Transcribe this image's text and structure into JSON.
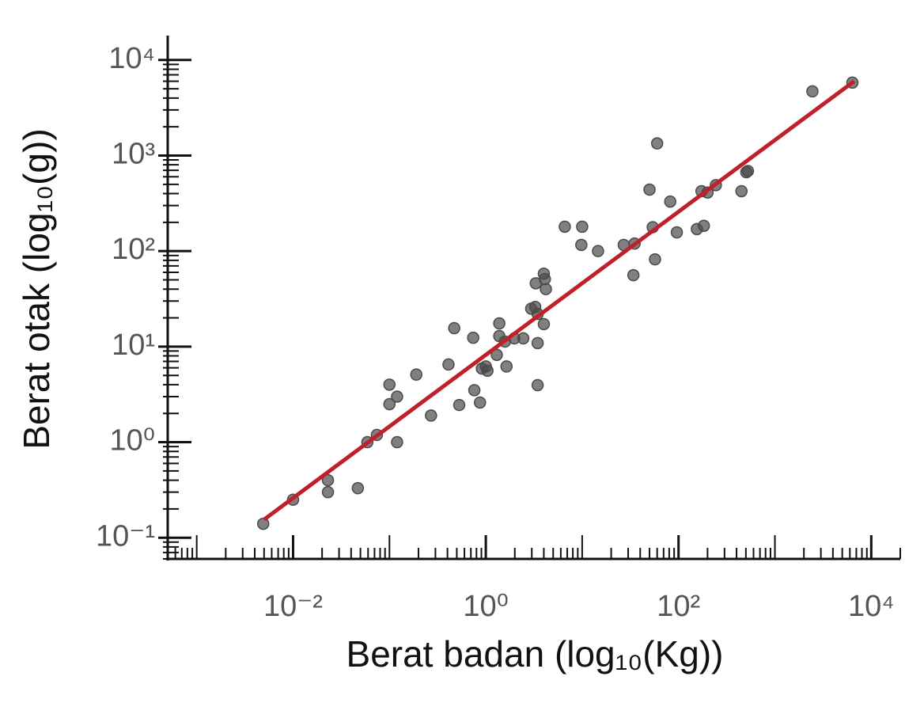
{
  "chart_data": {
    "type": "scatter",
    "x_label": "Berat badan (log₁₀(Kg))",
    "y_label": "Berat otak (log₁₀(g))",
    "xscale": "log",
    "yscale": "log",
    "xlim": [
      0.0005,
      20000
    ],
    "ylim": [
      0.06,
      18000
    ],
    "xticks": [
      {
        "value": 0.01,
        "label": "10⁻²"
      },
      {
        "value": 1,
        "label": "10⁰"
      },
      {
        "value": 100,
        "label": "10²"
      },
      {
        "value": 10000,
        "label": "10⁴"
      }
    ],
    "yticks": [
      {
        "value": 0.1,
        "label": "10⁻¹"
      },
      {
        "value": 1,
        "label": "10⁰"
      },
      {
        "value": 10,
        "label": "10¹"
      },
      {
        "value": 100,
        "label": "10²"
      },
      {
        "value": 1000,
        "label": "10³"
      },
      {
        "value": 10000,
        "label": "10⁴"
      }
    ],
    "minor_ticks": true,
    "color": "#4a4a4a",
    "point_opacity": 0.7,
    "x": [
      0.0049,
      0.01,
      0.023,
      0.023,
      0.047,
      0.059,
      0.074,
      0.12,
      0.1,
      0.1,
      0.12,
      0.19,
      0.27,
      0.41,
      0.47,
      0.53,
      0.74,
      0.76,
      0.87,
      0.91,
      1.0,
      1.04,
      1.3,
      1.38,
      1.38,
      1.64,
      1.58,
      1.98,
      2.45,
      2.96,
      3.26,
      3.3,
      3.45,
      3.45,
      3.45,
      4.0,
      4.0,
      4.1,
      4.2,
      6.6,
      10,
      9.8,
      14.6,
      27,
      35,
      34,
      50,
      54,
      57,
      60,
      82,
      96,
      155,
      173,
      183,
      200,
      244,
      450,
      505,
      525,
      2450,
      6370
    ],
    "y": [
      0.14,
      0.25,
      0.4,
      0.3,
      0.33,
      1.0,
      1.19,
      1.0,
      4.0,
      2.5,
      3.0,
      5.1,
      1.9,
      6.5,
      15.6,
      2.45,
      12.4,
      3.5,
      2.6,
      5.9,
      6.2,
      5.6,
      8.2,
      17.5,
      12.9,
      6.2,
      11.3,
      12.2,
      12.2,
      25,
      26,
      46,
      10.9,
      3.95,
      22,
      17.2,
      58,
      51,
      40,
      180,
      180,
      116,
      100,
      116,
      120,
      56,
      440,
      178,
      82,
      1340,
      330,
      157,
      170,
      424,
      184,
      410,
      490,
      424,
      670,
      690,
      4700,
      5800
    ],
    "trend": {
      "x": [
        0.005,
        6650
      ],
      "y": [
        0.155,
        6000
      ],
      "color": "#c0202a"
    }
  }
}
